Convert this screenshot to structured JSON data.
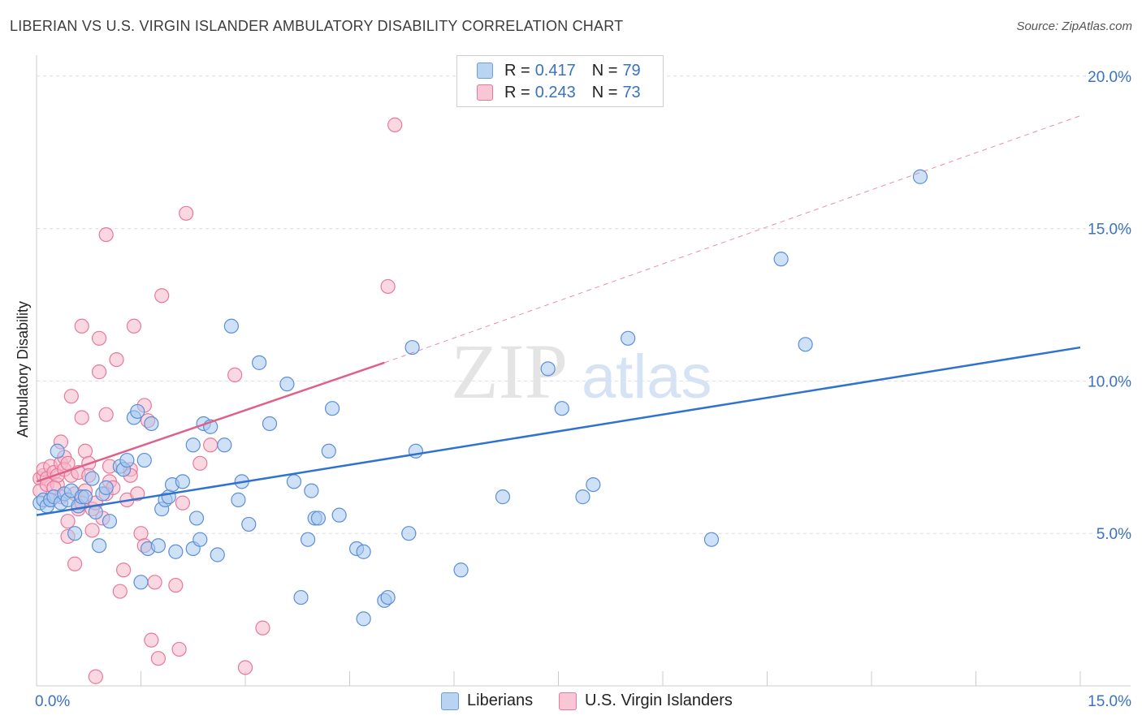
{
  "title": "LIBERIAN VS U.S. VIRGIN ISLANDER AMBULATORY DISABILITY CORRELATION CHART",
  "source": "Source: ZipAtlas.com",
  "watermark": {
    "zip": "ZIP",
    "atlas": "atlas"
  },
  "colors": {
    "blue_fill": "#a8c8f0",
    "blue_stroke": "#5b8fd6",
    "blue_line": "#2f72d0",
    "pink_fill": "#f6b8ca",
    "pink_stroke": "#e9789c",
    "pink_line": "#e0608a",
    "tick_text": "#3a72c4",
    "grid": "#dddddd"
  },
  "legend": {
    "rows": [
      {
        "r_label": "R =",
        "r_value": "0.417",
        "n_label": "N =",
        "n_value": "79"
      },
      {
        "r_label": "R =",
        "r_value": "0.243",
        "n_label": "N =",
        "n_value": "73"
      }
    ]
  },
  "chart_data": {
    "type": "scatter",
    "xlabel": "",
    "ylabel": "Ambulatory Disability",
    "xlim": [
      0,
      15
    ],
    "ylim": [
      0,
      20.5
    ],
    "x_tick_labels": [
      "0.0%",
      "15.0%"
    ],
    "y_ticks": [
      5,
      10,
      15,
      20
    ],
    "y_tick_labels": [
      "5.0%",
      "10.0%",
      "15.0%",
      "20.0%"
    ],
    "series": [
      {
        "name": "Liberians",
        "regression": {
          "x": [
            0,
            15
          ],
          "y": [
            5.6,
            11.1
          ],
          "extend_dashed": false
        },
        "points": [
          [
            0.05,
            6.0
          ],
          [
            0.1,
            6.1
          ],
          [
            0.15,
            5.9
          ],
          [
            0.2,
            6.1
          ],
          [
            0.25,
            6.2
          ],
          [
            0.3,
            7.7
          ],
          [
            0.35,
            6.0
          ],
          [
            0.4,
            6.3
          ],
          [
            0.45,
            6.1
          ],
          [
            0.5,
            6.4
          ],
          [
            0.55,
            5.0
          ],
          [
            0.6,
            5.9
          ],
          [
            0.65,
            6.2
          ],
          [
            0.7,
            6.2
          ],
          [
            0.8,
            6.8
          ],
          [
            0.85,
            5.7
          ],
          [
            0.9,
            4.6
          ],
          [
            0.95,
            6.3
          ],
          [
            1.0,
            6.5
          ],
          [
            1.05,
            5.4
          ],
          [
            1.2,
            7.2
          ],
          [
            1.25,
            7.1
          ],
          [
            1.3,
            7.4
          ],
          [
            1.4,
            8.8
          ],
          [
            1.45,
            9.0
          ],
          [
            1.5,
            3.4
          ],
          [
            1.55,
            7.4
          ],
          [
            1.6,
            4.5
          ],
          [
            1.65,
            8.6
          ],
          [
            1.75,
            4.6
          ],
          [
            1.8,
            5.8
          ],
          [
            1.85,
            6.1
          ],
          [
            1.9,
            6.2
          ],
          [
            1.95,
            6.6
          ],
          [
            2.0,
            4.4
          ],
          [
            2.1,
            6.7
          ],
          [
            2.25,
            7.9
          ],
          [
            2.25,
            4.5
          ],
          [
            2.3,
            5.5
          ],
          [
            2.35,
            4.8
          ],
          [
            2.4,
            8.6
          ],
          [
            2.5,
            8.5
          ],
          [
            2.6,
            4.3
          ],
          [
            2.7,
            7.9
          ],
          [
            2.8,
            11.8
          ],
          [
            2.9,
            6.1
          ],
          [
            2.95,
            6.7
          ],
          [
            3.05,
            5.3
          ],
          [
            3.2,
            10.6
          ],
          [
            3.35,
            8.6
          ],
          [
            3.6,
            9.9
          ],
          [
            3.7,
            6.7
          ],
          [
            3.8,
            2.9
          ],
          [
            3.9,
            4.8
          ],
          [
            3.95,
            6.4
          ],
          [
            4.0,
            5.5
          ],
          [
            4.05,
            5.5
          ],
          [
            4.2,
            7.7
          ],
          [
            4.25,
            9.1
          ],
          [
            4.35,
            5.6
          ],
          [
            4.6,
            4.5
          ],
          [
            4.7,
            4.4
          ],
          [
            4.7,
            2.2
          ],
          [
            5.0,
            2.8
          ],
          [
            5.05,
            2.9
          ],
          [
            5.35,
            5.0
          ],
          [
            5.4,
            11.1
          ],
          [
            5.45,
            7.7
          ],
          [
            6.1,
            3.8
          ],
          [
            6.7,
            6.2
          ],
          [
            7.35,
            10.4
          ],
          [
            7.55,
            9.1
          ],
          [
            7.85,
            6.2
          ],
          [
            8.0,
            6.6
          ],
          [
            8.5,
            11.4
          ],
          [
            9.7,
            4.8
          ],
          [
            10.7,
            14.0
          ],
          [
            11.05,
            11.2
          ],
          [
            12.7,
            16.7
          ]
        ]
      },
      {
        "name": "U.S. Virgin Islanders",
        "regression": {
          "x": [
            0,
            5.0
          ],
          "y": [
            6.7,
            10.6
          ],
          "extend_dashed": true,
          "dashed_to": [
            15,
            18.7
          ]
        },
        "points": [
          [
            0.05,
            6.8
          ],
          [
            0.05,
            6.4
          ],
          [
            0.1,
            6.9
          ],
          [
            0.1,
            7.1
          ],
          [
            0.15,
            6.8
          ],
          [
            0.15,
            6.6
          ],
          [
            0.2,
            7.2
          ],
          [
            0.2,
            6.1
          ],
          [
            0.25,
            7.0
          ],
          [
            0.3,
            6.6
          ],
          [
            0.3,
            6.9
          ],
          [
            0.35,
            7.3
          ],
          [
            0.35,
            8.0
          ],
          [
            0.4,
            7.5
          ],
          [
            0.4,
            7.1
          ],
          [
            0.45,
            5.4
          ],
          [
            0.45,
            4.9
          ],
          [
            0.5,
            9.5
          ],
          [
            0.5,
            6.9
          ],
          [
            0.55,
            6.3
          ],
          [
            0.55,
            4.0
          ],
          [
            0.6,
            7.0
          ],
          [
            0.6,
            5.8
          ],
          [
            0.65,
            11.8
          ],
          [
            0.65,
            8.8
          ],
          [
            0.7,
            7.7
          ],
          [
            0.7,
            6.4
          ],
          [
            0.75,
            7.3
          ],
          [
            0.8,
            5.8
          ],
          [
            0.8,
            5.1
          ],
          [
            0.85,
            6.0
          ],
          [
            0.9,
            11.4
          ],
          [
            0.9,
            10.3
          ],
          [
            0.95,
            5.5
          ],
          [
            1.0,
            8.9
          ],
          [
            1.0,
            6.3
          ],
          [
            1.05,
            7.2
          ],
          [
            1.05,
            6.7
          ],
          [
            1.1,
            6.5
          ],
          [
            1.15,
            10.7
          ],
          [
            1.2,
            3.1
          ],
          [
            1.25,
            3.8
          ],
          [
            1.3,
            6.1
          ],
          [
            1.35,
            7.1
          ],
          [
            1.35,
            6.9
          ],
          [
            1.4,
            11.8
          ],
          [
            1.45,
            6.3
          ],
          [
            1.5,
            5.0
          ],
          [
            1.55,
            4.6
          ],
          [
            1.55,
            9.2
          ],
          [
            1.6,
            8.7
          ],
          [
            1.65,
            1.5
          ],
          [
            1.7,
            3.4
          ],
          [
            1.75,
            0.9
          ],
          [
            1.8,
            12.8
          ],
          [
            2.0,
            3.3
          ],
          [
            2.05,
            1.2
          ],
          [
            2.1,
            6.0
          ],
          [
            2.15,
            15.5
          ],
          [
            2.35,
            7.3
          ],
          [
            2.5,
            7.9
          ],
          [
            2.85,
            10.2
          ],
          [
            3.0,
            0.6
          ],
          [
            3.25,
            1.9
          ],
          [
            5.05,
            13.1
          ],
          [
            5.15,
            18.4
          ],
          [
            0.85,
            0.3
          ],
          [
            1.0,
            14.8
          ],
          [
            0.35,
            6.2
          ],
          [
            0.75,
            6.9
          ],
          [
            0.25,
            6.5
          ],
          [
            0.45,
            7.3
          ],
          [
            0.65,
            6.0
          ]
        ]
      }
    ],
    "legend_position": "top-center",
    "grid": true
  },
  "bottom_legend": {
    "items": [
      "Liberians",
      "U.S. Virgin Islanders"
    ]
  }
}
